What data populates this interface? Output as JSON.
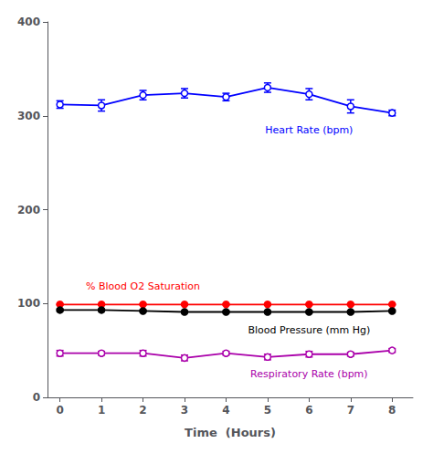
{
  "chart_data": {
    "type": "line",
    "xlabel": "Time  (Hours)",
    "x": [
      0,
      1,
      2,
      3,
      4,
      5,
      6,
      7,
      8
    ],
    "xlim": [
      -0.3,
      8.5
    ],
    "xticks": [
      0,
      1,
      2,
      3,
      4,
      5,
      6,
      7,
      8
    ],
    "ylim": [
      0,
      400
    ],
    "yticks": [
      0,
      100,
      200,
      300,
      400
    ],
    "grid": false,
    "series": [
      {
        "name": "Heart Rate (bpm)",
        "color": "#0000FF",
        "marker": "open_circle",
        "values": [
          312,
          311,
          322,
          324,
          320,
          330,
          323,
          310,
          303
        ],
        "errors": [
          4,
          6,
          5,
          5,
          4,
          5,
          6,
          7,
          3
        ]
      },
      {
        "name": "% Blood O2 Saturation",
        "color": "#FF0000",
        "marker": "circle",
        "values": [
          99,
          99,
          99,
          99,
          99,
          99,
          99,
          99,
          99
        ],
        "errors": [
          0.5,
          0.5,
          0.5,
          0.5,
          0.5,
          0.5,
          0.5,
          0.5,
          0.5
        ]
      },
      {
        "name": "Blood Pressure (mm Hg)",
        "color": "#000000",
        "marker": "circle",
        "values": [
          93,
          93,
          92,
          91,
          91,
          91,
          91,
          91,
          92
        ],
        "errors": [
          1,
          1,
          1,
          1,
          1,
          1,
          1,
          1,
          1
        ]
      },
      {
        "name": "Respiratory Rate (bpm)",
        "color": "#AA00AA",
        "marker": "open_circle",
        "values": [
          47,
          47,
          47,
          42,
          47,
          43,
          46,
          46,
          50
        ],
        "errors": [
          3,
          2,
          3,
          3,
          2,
          3,
          3,
          2,
          2
        ]
      }
    ]
  }
}
